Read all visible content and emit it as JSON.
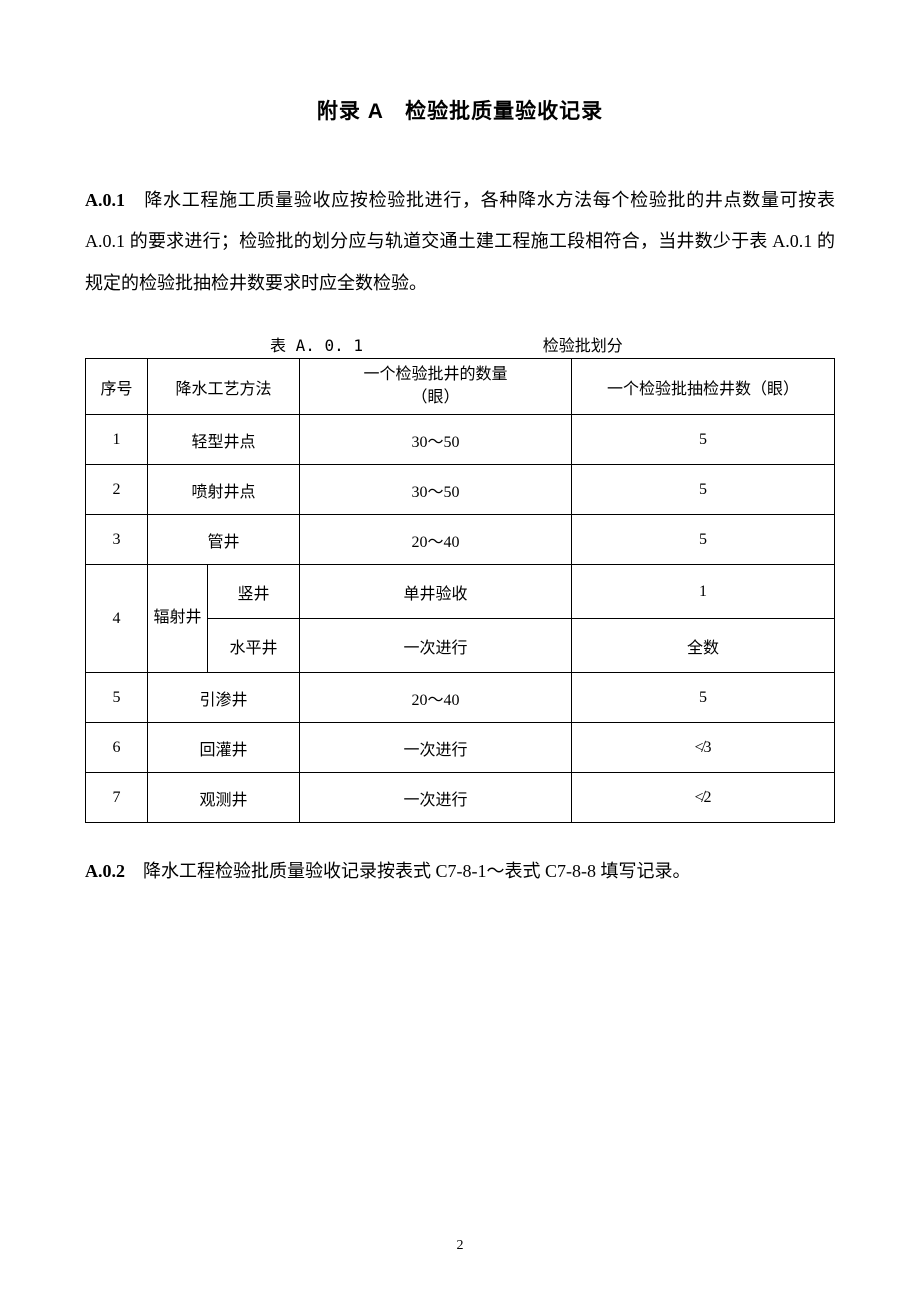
{
  "title": "附录 A　检验批质量验收记录",
  "para1": {
    "label": "A.0.1",
    "text": "　降水工程施工质量验收应按检验批进行，各种降水方法每个检验批的井点数量可按表 A.0.1 的要求进行；检验批的划分应与轨道交通土建工程施工段相符合，当井数少于表 A.0.1 的规定的检验批抽检井数要求时应全数检验。"
  },
  "table_caption": {
    "left": "表 A. 0. 1",
    "right": "检验批划分"
  },
  "table": {
    "headers": {
      "seq": "序号",
      "method": "降水工艺方法",
      "qty": "一个检验批井的数量\n（眼）",
      "check": "一个检验批抽检井数（眼）"
    },
    "rows": [
      {
        "seq": "1",
        "method": "轻型井点",
        "qty": "30～50",
        "check": "5"
      },
      {
        "seq": "2",
        "method": "喷射井点",
        "qty": "30～50",
        "check": "5"
      },
      {
        "seq": "3",
        "method": "管井",
        "qty": "20～40",
        "check": "5"
      },
      {
        "seq": "4",
        "method_main": "辐射井",
        "sub_a": {
          "name": "竖井",
          "qty": "单井验收",
          "check": "1"
        },
        "sub_b": {
          "name": "水平井",
          "qty": "一次进行",
          "check": "全数"
        }
      },
      {
        "seq": "5",
        "method": "引渗井",
        "qty": "20～40",
        "check": "5"
      },
      {
        "seq": "6",
        "method": "回灌井",
        "qty": "一次进行",
        "check": "≮3"
      },
      {
        "seq": "7",
        "method": "观测井",
        "qty": "一次进行",
        "check": "≮2"
      }
    ]
  },
  "para2": {
    "label": "A.0.2",
    "text": "　降水工程检验批质量验收记录按表式 C7-8-1～表式 C7-8-8 填写记录。"
  },
  "page_number": "2"
}
